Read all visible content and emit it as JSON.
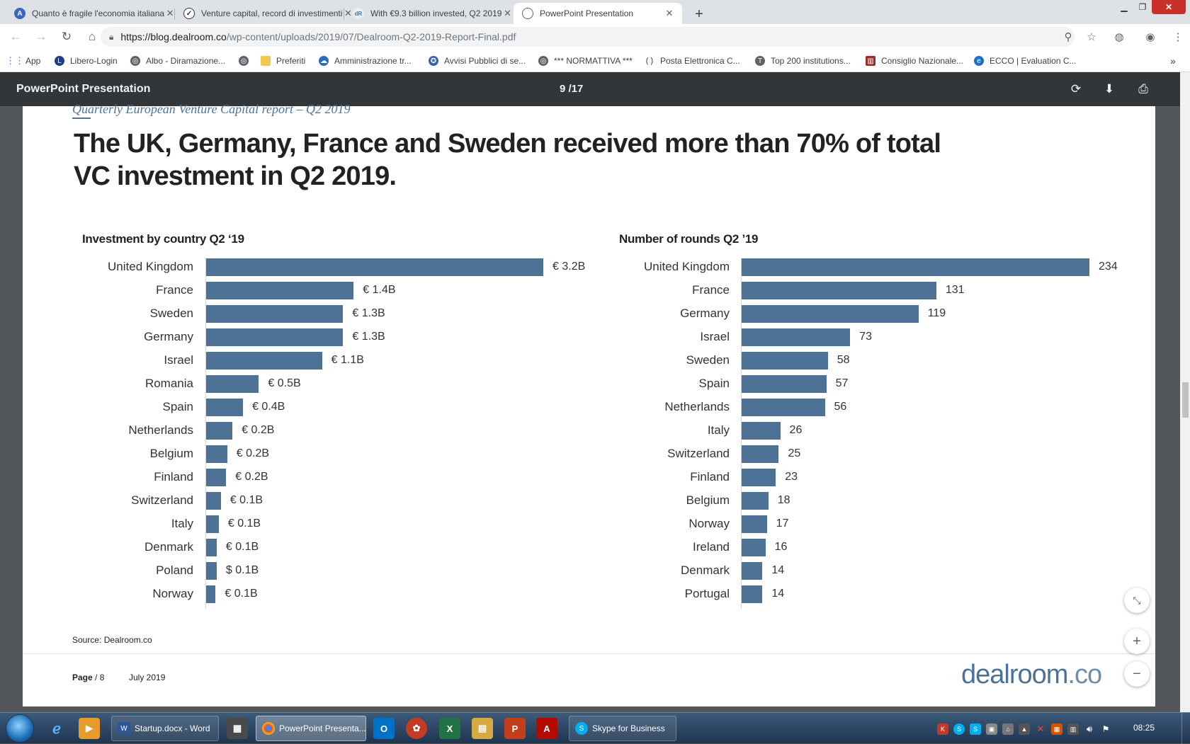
{
  "browser": {
    "tabs": [
      {
        "title": "Quanto è fragile l'economia italiana",
        "icon": "a-letter-icon",
        "active": false
      },
      {
        "title": "Venture capital, record di investimenti",
        "icon": "globe-icon",
        "active": false
      },
      {
        "title": "With €9.3 billion invested, Q2 2019",
        "icon": "dealroom-icon",
        "active": false
      },
      {
        "title": "PowerPoint Presentation",
        "icon": "globe-icon",
        "active": true
      }
    ],
    "new_tab_label": "+",
    "url_host": "https://blog.dealroom.co",
    "url_path": "/wp-content/uploads/2019/07/Dealroom-Q2-2019-Report-Final.pdf",
    "bookmarks": [
      {
        "label": "App",
        "icon": "apps-grid-icon"
      },
      {
        "label": "Libero-Login",
        "icon": "libero-icon"
      },
      {
        "label": "Albo - Diramazione...",
        "icon": "globe-icon"
      },
      {
        "label": "",
        "icon": "globe-icon"
      },
      {
        "label": "Preferiti",
        "icon": "folder-icon"
      },
      {
        "label": "Amministrazione tr...",
        "icon": "cloud-icon"
      },
      {
        "label": "Avvisi Pubblici di se...",
        "icon": "emblem-icon"
      },
      {
        "label": "*** NORMATTIVA ***",
        "icon": "globe-icon"
      },
      {
        "label": "Posta Elettronica C...",
        "icon": "parentheses-icon"
      },
      {
        "label": "Top 200 institutions...",
        "icon": "timeshigher-icon"
      },
      {
        "label": "Consiglio Nazionale...",
        "icon": "building-icon"
      },
      {
        "label": "ECCO | Evaluation C...",
        "icon": "ecco-icon"
      }
    ],
    "more_bookmarks": "»"
  },
  "pdf_viewer": {
    "title": "PowerPoint Presentation",
    "page_indicator": "9 /17"
  },
  "slide": {
    "subtitle": "Quarterly European Venture Capital report – Q2 2019",
    "headline": "The UK, Germany, France and Sweden received more than 70% of total VC investment in Q2 2019.",
    "source": "Source: Dealroom.co",
    "page_label": "Page",
    "page_number": "/ 8",
    "date": "July 2019",
    "logo_main": "dealroom",
    "logo_suffix": ".co"
  },
  "chart_data": [
    {
      "type": "bar",
      "orientation": "horizontal",
      "title": "Investment by country Q2 ‘19",
      "categories": [
        "United Kingdom",
        "France",
        "Sweden",
        "Germany",
        "Israel",
        "Romania",
        "Spain",
        "Netherlands",
        "Belgium",
        "Finland",
        "Switzerland",
        "Italy",
        "Denmark",
        "Poland",
        "Norway"
      ],
      "values": [
        3.2,
        1.4,
        1.3,
        1.3,
        1.1,
        0.5,
        0.35,
        0.25,
        0.2,
        0.19,
        0.14,
        0.12,
        0.1,
        0.1,
        0.09
      ],
      "labels": [
        "€ 3.2B",
        "€ 1.4B",
        "€ 1.3B",
        "€ 1.3B",
        "€ 1.1B",
        "€ 0.5B",
        "€ 0.4B",
        "€ 0.2B",
        "€ 0.2B",
        "€ 0.2B",
        "€ 0.1B",
        "€ 0.1B",
        "€ 0.1B",
        "$ 0.1B",
        "€ 0.1B"
      ],
      "xlim": [
        0,
        3.2
      ],
      "color": "#4e7296",
      "grid": false
    },
    {
      "type": "bar",
      "orientation": "horizontal",
      "title": "Number of rounds Q2 ’19",
      "categories": [
        "United Kingdom",
        "France",
        "Germany",
        "Israel",
        "Sweden",
        "Spain",
        "Netherlands",
        "Italy",
        "Switzerland",
        "Finland",
        "Belgium",
        "Norway",
        "Ireland",
        "Denmark",
        "Portugal"
      ],
      "values": [
        234,
        131,
        119,
        73,
        58,
        57,
        56,
        26,
        25,
        23,
        18,
        17,
        16,
        14,
        14
      ],
      "labels": [
        "234",
        "131",
        "119",
        "73",
        "58",
        "57",
        "56",
        "26",
        "25",
        "23",
        "18",
        "17",
        "16",
        "14",
        "14"
      ],
      "xlim": [
        0,
        234
      ],
      "color": "#4e7296",
      "grid": false
    }
  ],
  "taskbar": {
    "tasks": [
      {
        "label": "Startup.docx - Word",
        "icon": "word-icon"
      },
      {
        "label": "PowerPoint Presenta...",
        "icon": "chrome-icon"
      },
      {
        "label": "Skype for Business",
        "icon": "skype-icon"
      }
    ],
    "clock": "08:25"
  }
}
